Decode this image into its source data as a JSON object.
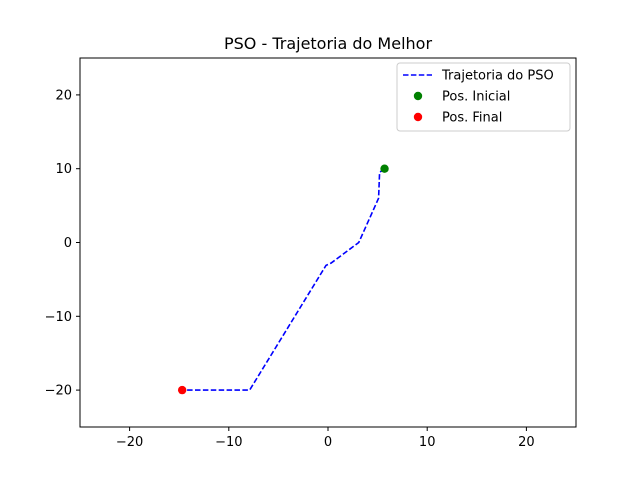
{
  "chart_data": {
    "type": "line",
    "title": "PSO - Trajetoria do Melhor",
    "xlabel": "",
    "ylabel": "",
    "xlim": [
      -25,
      25
    ],
    "ylim": [
      -25,
      25
    ],
    "x_ticks": [
      -20,
      -10,
      0,
      10,
      20
    ],
    "y_ticks": [
      -20,
      -10,
      0,
      10,
      20
    ],
    "grid": false,
    "legend_position": "top-right",
    "series": [
      {
        "name": "Trajetoria do PSO",
        "style": "dashed",
        "color": "#0000ff",
        "x": [
          5.7,
          5.2,
          5.1,
          3.1,
          0.3,
          -0.2,
          -7.9,
          -14.7
        ],
        "y": [
          10.0,
          9.5,
          6.0,
          0.0,
          -2.8,
          -3.1,
          -20.0,
          -20.0
        ]
      },
      {
        "name": "Pos. Inicial",
        "style": "marker",
        "color": "#008000",
        "x": [
          5.7
        ],
        "y": [
          10.0
        ]
      },
      {
        "name": "Pos. Final",
        "style": "marker",
        "color": "#ff0000",
        "x": [
          -14.7
        ],
        "y": [
          -20.0
        ]
      }
    ]
  }
}
